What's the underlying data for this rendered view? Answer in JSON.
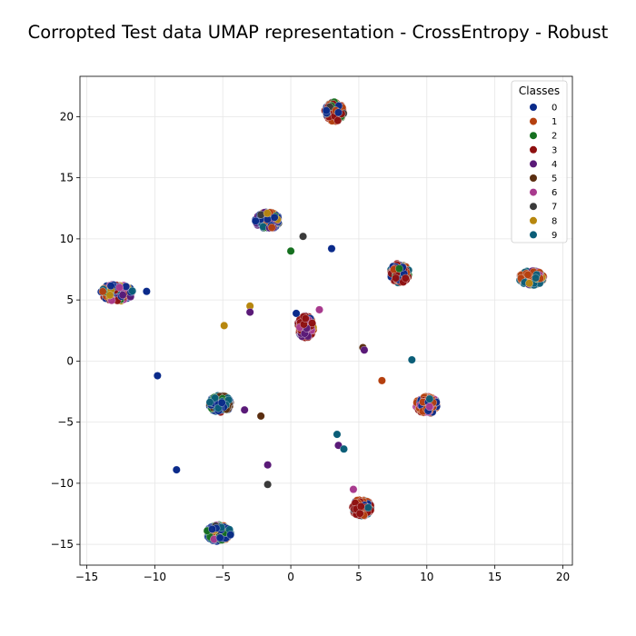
{
  "chart_data": {
    "type": "scatter",
    "title": "Corropted Test data UMAP representation - CrossEntropy - Robust",
    "xlabel": "",
    "ylabel": "",
    "xlim": [
      -15.5,
      20.7
    ],
    "ylim": [
      -16.7,
      23.3
    ],
    "xticks": [
      -15,
      -10,
      -5,
      0,
      5,
      10,
      15,
      20
    ],
    "yticks": [
      -15,
      -10,
      -5,
      0,
      5,
      10,
      15,
      20
    ],
    "grid": true,
    "legend": {
      "title": "Classes",
      "position": "top-right",
      "entries": [
        {
          "label": "0",
          "color": "#0a2a8a"
        },
        {
          "label": "1",
          "color": "#b5400f"
        },
        {
          "label": "2",
          "color": "#15701f"
        },
        {
          "label": "3",
          "color": "#8e1010"
        },
        {
          "label": "4",
          "color": "#5a1a78"
        },
        {
          "label": "5",
          "color": "#5a2e10"
        },
        {
          "label": "6",
          "color": "#a83a8e"
        },
        {
          "label": "7",
          "color": "#3a3a3a"
        },
        {
          "label": "8",
          "color": "#b7870e"
        },
        {
          "label": "9",
          "color": "#0b5e78"
        }
      ]
    },
    "clusters": [
      {
        "cx": -12.8,
        "cy": 5.6,
        "rx": 1.2,
        "ry": 0.7,
        "mix": [
          0,
          0,
          0,
          3,
          8,
          9,
          1,
          6,
          2,
          4
        ]
      },
      {
        "cx": 3.2,
        "cy": 20.4,
        "rx": 0.7,
        "ry": 0.8,
        "mix": [
          3,
          3,
          1,
          2,
          5,
          7,
          0,
          2,
          1,
          3
        ]
      },
      {
        "cx": -1.7,
        "cy": 11.5,
        "rx": 0.9,
        "ry": 0.7,
        "mix": [
          0,
          1,
          0,
          0,
          7,
          9,
          2,
          4,
          8,
          0
        ]
      },
      {
        "cx": 8.0,
        "cy": 7.2,
        "rx": 0.7,
        "ry": 0.8,
        "mix": [
          3,
          3,
          3,
          1,
          2,
          0,
          5,
          9,
          3,
          0
        ]
      },
      {
        "cx": 17.7,
        "cy": 6.8,
        "rx": 0.9,
        "ry": 0.6,
        "mix": [
          9,
          1,
          1,
          1,
          6,
          9,
          9,
          4,
          8,
          1
        ]
      },
      {
        "cx": 1.1,
        "cy": 2.8,
        "rx": 0.6,
        "ry": 0.9,
        "mix": [
          3,
          3,
          3,
          6,
          6,
          4,
          1,
          8,
          0,
          3
        ]
      },
      {
        "cx": -5.2,
        "cy": -3.5,
        "rx": 0.8,
        "ry": 0.7,
        "mix": [
          0,
          0,
          9,
          2,
          3,
          9,
          5,
          0,
          5,
          9
        ]
      },
      {
        "cx": 10.0,
        "cy": -3.6,
        "rx": 0.8,
        "ry": 0.7,
        "mix": [
          1,
          1,
          1,
          6,
          0,
          9,
          3,
          1,
          6,
          0
        ]
      },
      {
        "cx": 5.2,
        "cy": -12.0,
        "rx": 0.7,
        "ry": 0.7,
        "mix": [
          3,
          3,
          0,
          3,
          1,
          1,
          9,
          0,
          9,
          3
        ]
      },
      {
        "cx": -5.3,
        "cy": -14.1,
        "rx": 0.9,
        "ry": 0.7,
        "mix": [
          0,
          0,
          8,
          0,
          6,
          9,
          1,
          0,
          2,
          7
        ]
      }
    ],
    "outliers": [
      {
        "x": -10.6,
        "y": 5.7,
        "class": 0
      },
      {
        "x": -9.8,
        "y": -1.2,
        "class": 0
      },
      {
        "x": -8.4,
        "y": -8.9,
        "class": 0
      },
      {
        "x": -4.9,
        "y": 2.9,
        "class": 8
      },
      {
        "x": -3.0,
        "y": 4.5,
        "class": 8
      },
      {
        "x": -3.0,
        "y": 4.0,
        "class": 4
      },
      {
        "x": -3.4,
        "y": -4.0,
        "class": 4
      },
      {
        "x": -2.2,
        "y": -4.5,
        "class": 5
      },
      {
        "x": -1.7,
        "y": -8.5,
        "class": 4
      },
      {
        "x": -1.7,
        "y": -10.1,
        "class": 7
      },
      {
        "x": 0.0,
        "y": 9.0,
        "class": 2
      },
      {
        "x": 0.9,
        "y": 10.2,
        "class": 7
      },
      {
        "x": 3.0,
        "y": 9.2,
        "class": 0
      },
      {
        "x": 2.1,
        "y": 4.2,
        "class": 6
      },
      {
        "x": 0.4,
        "y": 3.9,
        "class": 0
      },
      {
        "x": 5.3,
        "y": 1.1,
        "class": 5
      },
      {
        "x": 5.4,
        "y": 0.9,
        "class": 4
      },
      {
        "x": 6.7,
        "y": -1.6,
        "class": 1
      },
      {
        "x": 8.9,
        "y": 0.1,
        "class": 9
      },
      {
        "x": 3.4,
        "y": -6.0,
        "class": 9
      },
      {
        "x": 3.5,
        "y": -6.9,
        "class": 4
      },
      {
        "x": 3.9,
        "y": -7.2,
        "class": 9
      },
      {
        "x": 4.6,
        "y": -10.5,
        "class": 6
      }
    ]
  }
}
